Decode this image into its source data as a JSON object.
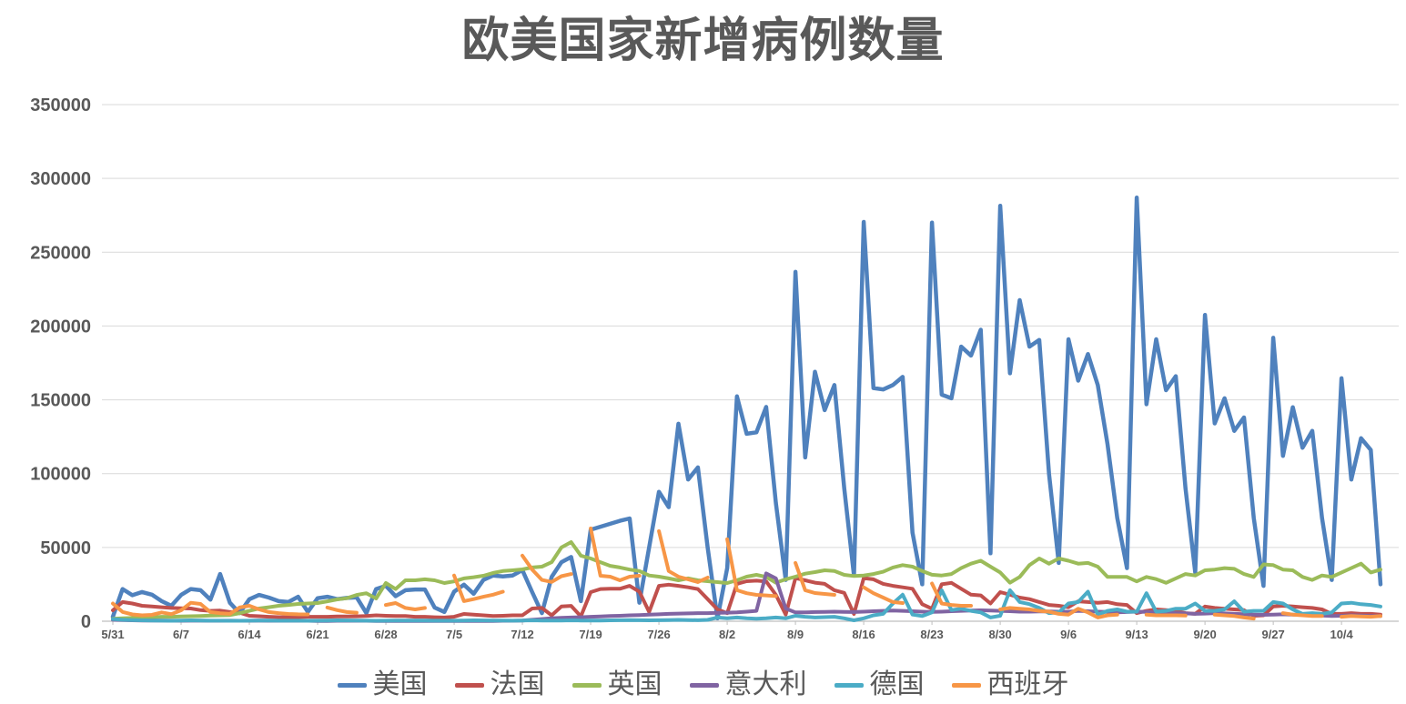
{
  "chart_data": {
    "type": "line",
    "title": "欧美国家新增病例数量",
    "grid": "horizontal",
    "legend_position": "bottom",
    "ylim": [
      0,
      350000
    ],
    "y_ticks": [
      0,
      50000,
      100000,
      150000,
      200000,
      250000,
      300000,
      350000
    ],
    "x_tick_labels": [
      "5/31",
      "6/7",
      "6/14",
      "6/21",
      "6/28",
      "7/5",
      "7/12",
      "7/19",
      "7/26",
      "8/2",
      "8/9",
      "8/16",
      "8/23",
      "8/30",
      "9/6",
      "9/13",
      "9/20",
      "9/27",
      "10/4"
    ],
    "x": [
      "5/31",
      "6/1",
      "6/2",
      "6/3",
      "6/4",
      "6/5",
      "6/6",
      "6/7",
      "6/8",
      "6/9",
      "6/10",
      "6/11",
      "6/12",
      "6/13",
      "6/14",
      "6/15",
      "6/16",
      "6/17",
      "6/18",
      "6/19",
      "6/20",
      "6/21",
      "6/22",
      "6/23",
      "6/24",
      "6/25",
      "6/26",
      "6/27",
      "6/28",
      "6/29",
      "6/30",
      "7/1",
      "7/2",
      "7/3",
      "7/4",
      "7/5",
      "7/6",
      "7/7",
      "7/8",
      "7/9",
      "7/10",
      "7/11",
      "7/12",
      "7/13",
      "7/14",
      "7/15",
      "7/16",
      "7/17",
      "7/18",
      "7/19",
      "7/20",
      "7/21",
      "7/22",
      "7/23",
      "7/24",
      "7/25",
      "7/26",
      "7/27",
      "7/28",
      "7/29",
      "7/30",
      "7/31",
      "8/1",
      "8/2",
      "8/3",
      "8/4",
      "8/5",
      "8/6",
      "8/7",
      "8/8",
      "8/9",
      "8/10",
      "8/11",
      "8/12",
      "8/13",
      "8/14",
      "8/15",
      "8/16",
      "8/17",
      "8/18",
      "8/19",
      "8/20",
      "8/21",
      "8/22",
      "8/23",
      "8/24",
      "8/25",
      "8/26",
      "8/27",
      "8/28",
      "8/29",
      "8/30",
      "8/31",
      "9/1",
      "9/2",
      "9/3",
      "9/4",
      "9/5",
      "9/6",
      "9/7",
      "9/8",
      "9/9",
      "9/10",
      "9/11",
      "9/12",
      "9/13",
      "9/14",
      "9/15",
      "9/16",
      "9/17",
      "9/18",
      "9/19",
      "9/20",
      "9/21",
      "9/22",
      "9/23",
      "9/24",
      "9/25",
      "9/26",
      "9/27",
      "9/28",
      "9/29",
      "9/30",
      "10/1",
      "10/2",
      "10/3",
      "10/4",
      "10/5",
      "10/6",
      "10/7",
      "10/8"
    ],
    "series": [
      {
        "key": "usa",
        "name": "美国",
        "color": "#4F81BD",
        "width": 4.5,
        "values": [
          3000,
          21800,
          17600,
          19800,
          18000,
          13600,
          10500,
          17800,
          21800,
          21000,
          14600,
          32000,
          12500,
          5500,
          14900,
          17800,
          16000,
          13600,
          13000,
          16600,
          6300,
          15600,
          16600,
          15000,
          15800,
          16200,
          5500,
          21800,
          24000,
          17000,
          21000,
          21500,
          21500,
          9300,
          6300,
          20000,
          24800,
          18600,
          28000,
          31000,
          30300,
          31000,
          34600,
          19700,
          5500,
          30000,
          40000,
          43500,
          13600,
          62000,
          64000,
          66000,
          68000,
          69600,
          12600,
          50000,
          87700,
          77300,
          133800,
          96000,
          104200,
          50000,
          2000,
          36000,
          152300,
          127000,
          128000,
          145200,
          80000,
          28000,
          236700,
          111000,
          169000,
          143000,
          160000,
          90000,
          31000,
          270500,
          158000,
          157000,
          160000,
          165500,
          60000,
          25000,
          270000,
          153500,
          151000,
          186000,
          180000,
          197500,
          46000,
          281500,
          168000,
          217500,
          186000,
          190500,
          100000,
          39500,
          191000,
          163000,
          181000,
          160000,
          120000,
          70000,
          36000,
          287000,
          147000,
          191000,
          156500,
          166000,
          90000,
          33000,
          207500,
          134000,
          151000,
          129000,
          138000,
          70000,
          24000,
          192000,
          112000,
          145000,
          117500,
          129000,
          70000,
          28000,
          164600,
          96000,
          124000,
          116000,
          25000
        ]
      },
      {
        "key": "france",
        "name": "法国",
        "color": "#C0504D",
        "width": 4,
        "values": [
          7400,
          13000,
          12000,
          10500,
          10000,
          9500,
          9000,
          8800,
          8600,
          7500,
          7000,
          7200,
          6200,
          5800,
          3700,
          3400,
          3000,
          2800,
          2700,
          2800,
          3000,
          3000,
          3000,
          3200,
          3200,
          3300,
          3500,
          4000,
          3700,
          3500,
          3500,
          3000,
          3000,
          2700,
          2500,
          3000,
          4900,
          4500,
          4000,
          3500,
          3700,
          4000,
          4000,
          8600,
          9000,
          4000,
          10000,
          10400,
          3300,
          19700,
          21800,
          22000,
          22000,
          24000,
          20000,
          6300,
          24000,
          24800,
          24000,
          23000,
          21800,
          15000,
          8000,
          5500,
          25300,
          27100,
          27500,
          27000,
          17900,
          4500,
          29200,
          27700,
          26100,
          25300,
          21000,
          19200,
          4900,
          29200,
          28400,
          25300,
          24000,
          23000,
          22000,
          11500,
          8500,
          25000,
          26000,
          22000,
          18000,
          17500,
          12000,
          19700,
          18000,
          16000,
          15000,
          13000,
          11000,
          10500,
          9500,
          13500,
          13000,
          12500,
          13000,
          11500,
          11000,
          5500,
          7000,
          8000,
          7500,
          7000,
          5500,
          5000,
          10000,
          9000,
          8500,
          8000,
          7500,
          3700,
          4000,
          10000,
          10500,
          10000,
          9500,
          9000,
          8000,
          5000,
          5000,
          5500,
          5000,
          5000,
          4500
        ]
      },
      {
        "key": "uk",
        "name": "英国",
        "color": "#9BBB59",
        "width": 4,
        "values": [
          1700,
          2000,
          2200,
          2500,
          2700,
          3000,
          3000,
          3200,
          3400,
          3600,
          3800,
          4000,
          4200,
          5500,
          7000,
          8600,
          9500,
          10500,
          11000,
          11700,
          12000,
          12300,
          13500,
          14800,
          15600,
          17800,
          19000,
          15400,
          25900,
          21800,
          27700,
          27700,
          28400,
          27700,
          25900,
          27000,
          29000,
          29800,
          30800,
          32700,
          34000,
          34500,
          35100,
          36400,
          37000,
          40000,
          50000,
          53600,
          44400,
          42500,
          40000,
          37500,
          36400,
          35000,
          34000,
          31000,
          30200,
          29000,
          27700,
          29000,
          27700,
          27100,
          26500,
          25900,
          27700,
          30200,
          31400,
          30000,
          26100,
          28400,
          30200,
          32200,
          33300,
          34500,
          34000,
          31400,
          30600,
          31000,
          32000,
          33500,
          36400,
          38000,
          37000,
          34000,
          31500,
          31000,
          32000,
          36000,
          39000,
          41000,
          37000,
          33000,
          26100,
          30000,
          38000,
          42500,
          39000,
          42500,
          41000,
          39000,
          39500,
          37000,
          30000,
          30000,
          30000,
          27000,
          30000,
          28500,
          26000,
          29000,
          32000,
          31000,
          34500,
          35000,
          36000,
          35500,
          32000,
          30000,
          38500,
          38000,
          35000,
          34500,
          30000,
          28000,
          31000,
          30000,
          33000,
          36000,
          39000,
          33000,
          35000
        ]
      },
      {
        "key": "italy",
        "name": "意大利",
        "color": "#8064A2",
        "width": 4,
        "values": [
          1000,
          800,
          600,
          500,
          500,
          500,
          400,
          300,
          400,
          400,
          300,
          300,
          400,
          300,
          300,
          400,
          300,
          300,
          300,
          300,
          300,
          200,
          200,
          300,
          300,
          300,
          300,
          200,
          200,
          200,
          200,
          200,
          200,
          200,
          200,
          200,
          200,
          200,
          200,
          200,
          300,
          300,
          500,
          1000,
          1500,
          2000,
          2300,
          2500,
          2700,
          3000,
          3200,
          3500,
          3700,
          4000,
          4200,
          4500,
          4700,
          5000,
          5200,
          5300,
          5500,
          5500,
          5700,
          5800,
          6000,
          6500,
          7000,
          32400,
          29000,
          8600,
          6000,
          6000,
          6200,
          6300,
          6500,
          6300,
          6200,
          6500,
          6800,
          7000,
          7200,
          7000,
          6800,
          6500,
          6300,
          6500,
          6800,
          7000,
          7200,
          7400,
          7200,
          7000,
          6800,
          6500,
          6500,
          6600,
          6600,
          6500,
          6400,
          7000,
          6800,
          6500,
          6300,
          6000,
          6200,
          6500,
          6300,
          6000,
          5800,
          5500,
          5300,
          5000,
          5200,
          5500,
          5300,
          5000,
          4800,
          4500,
          4300,
          4500,
          4700,
          4500,
          4300,
          4000,
          3800,
          3500,
          3700,
          4000,
          3800,
          3600,
          3500
        ]
      },
      {
        "key": "germany",
        "name": "德国",
        "color": "#4BACC6",
        "width": 4,
        "values": [
          1500,
          1000,
          800,
          600,
          500,
          400,
          300,
          500,
          600,
          500,
          400,
          350,
          300,
          300,
          400,
          500,
          450,
          400,
          350,
          400,
          300,
          350,
          500,
          600,
          550,
          500,
          400,
          300,
          400,
          500,
          450,
          500,
          450,
          400,
          350,
          400,
          500,
          600,
          550,
          500,
          450,
          400,
          500,
          600,
          500,
          450,
          500,
          600,
          500,
          450,
          500,
          600,
          700,
          800,
          700,
          600,
          700,
          800,
          900,
          800,
          700,
          900,
          2500,
          2000,
          2500,
          2000,
          1700,
          2000,
          2500,
          2000,
          3700,
          3000,
          2500,
          2800,
          3000,
          2000,
          600,
          2000,
          4000,
          5000,
          12000,
          18000,
          4500,
          3500,
          6000,
          21000,
          7500,
          8500,
          7000,
          6000,
          2500,
          3700,
          21000,
          13000,
          11600,
          9000,
          5500,
          6000,
          12000,
          13000,
          20000,
          4500,
          7000,
          8000,
          6500,
          6500,
          19000,
          6500,
          7000,
          8500,
          8500,
          12000,
          7000,
          7000,
          8000,
          13500,
          6500,
          7000,
          7000,
          13000,
          12000,
          8000,
          5000,
          5500,
          5000,
          6000,
          12000,
          12500,
          11500,
          11000,
          10000
        ]
      },
      {
        "key": "spain",
        "name": "西班牙",
        "color": "#F79646",
        "width": 4,
        "values": [
          12000,
          6300,
          4600,
          4000,
          4300,
          6000,
          4800,
          7400,
          12500,
          11700,
          6200,
          5400,
          5000,
          9300,
          10500,
          8000,
          6200,
          5500,
          4900,
          4700,
          4600,
          null,
          9300,
          7500,
          6200,
          5800,
          null,
          null,
          11000,
          12300,
          9000,
          8000,
          9000,
          null,
          null,
          31000,
          13600,
          15000,
          16600,
          18000,
          20000,
          null,
          44400,
          35000,
          28000,
          26600,
          30500,
          32000,
          null,
          62900,
          30800,
          30200,
          27700,
          30200,
          30800,
          null,
          61000,
          34000,
          30200,
          28400,
          26500,
          29600,
          null,
          55500,
          21000,
          19000,
          17900,
          17500,
          17000,
          null,
          39500,
          21000,
          19100,
          18500,
          17900,
          null,
          null,
          23000,
          19000,
          16000,
          13000,
          12300,
          null,
          null,
          25600,
          12000,
          11000,
          10500,
          10500,
          null,
          null,
          8000,
          9000,
          8500,
          8000,
          7000,
          6500,
          5000,
          4500,
          8500,
          6000,
          2500,
          4000,
          4500,
          null,
          null,
          4500,
          4000,
          4000,
          4000,
          3800,
          null,
          null,
          4500,
          4000,
          3500,
          2500,
          1800,
          null,
          null,
          5500,
          4500,
          4000,
          3500,
          3500,
          null,
          3000,
          3500,
          3200,
          3000,
          3500
        ]
      }
    ]
  },
  "style": {
    "grid_color": "#D9D9D9",
    "axis_color": "#BFBFBF",
    "label_color": "#595959",
    "background": "#FFFFFF"
  }
}
